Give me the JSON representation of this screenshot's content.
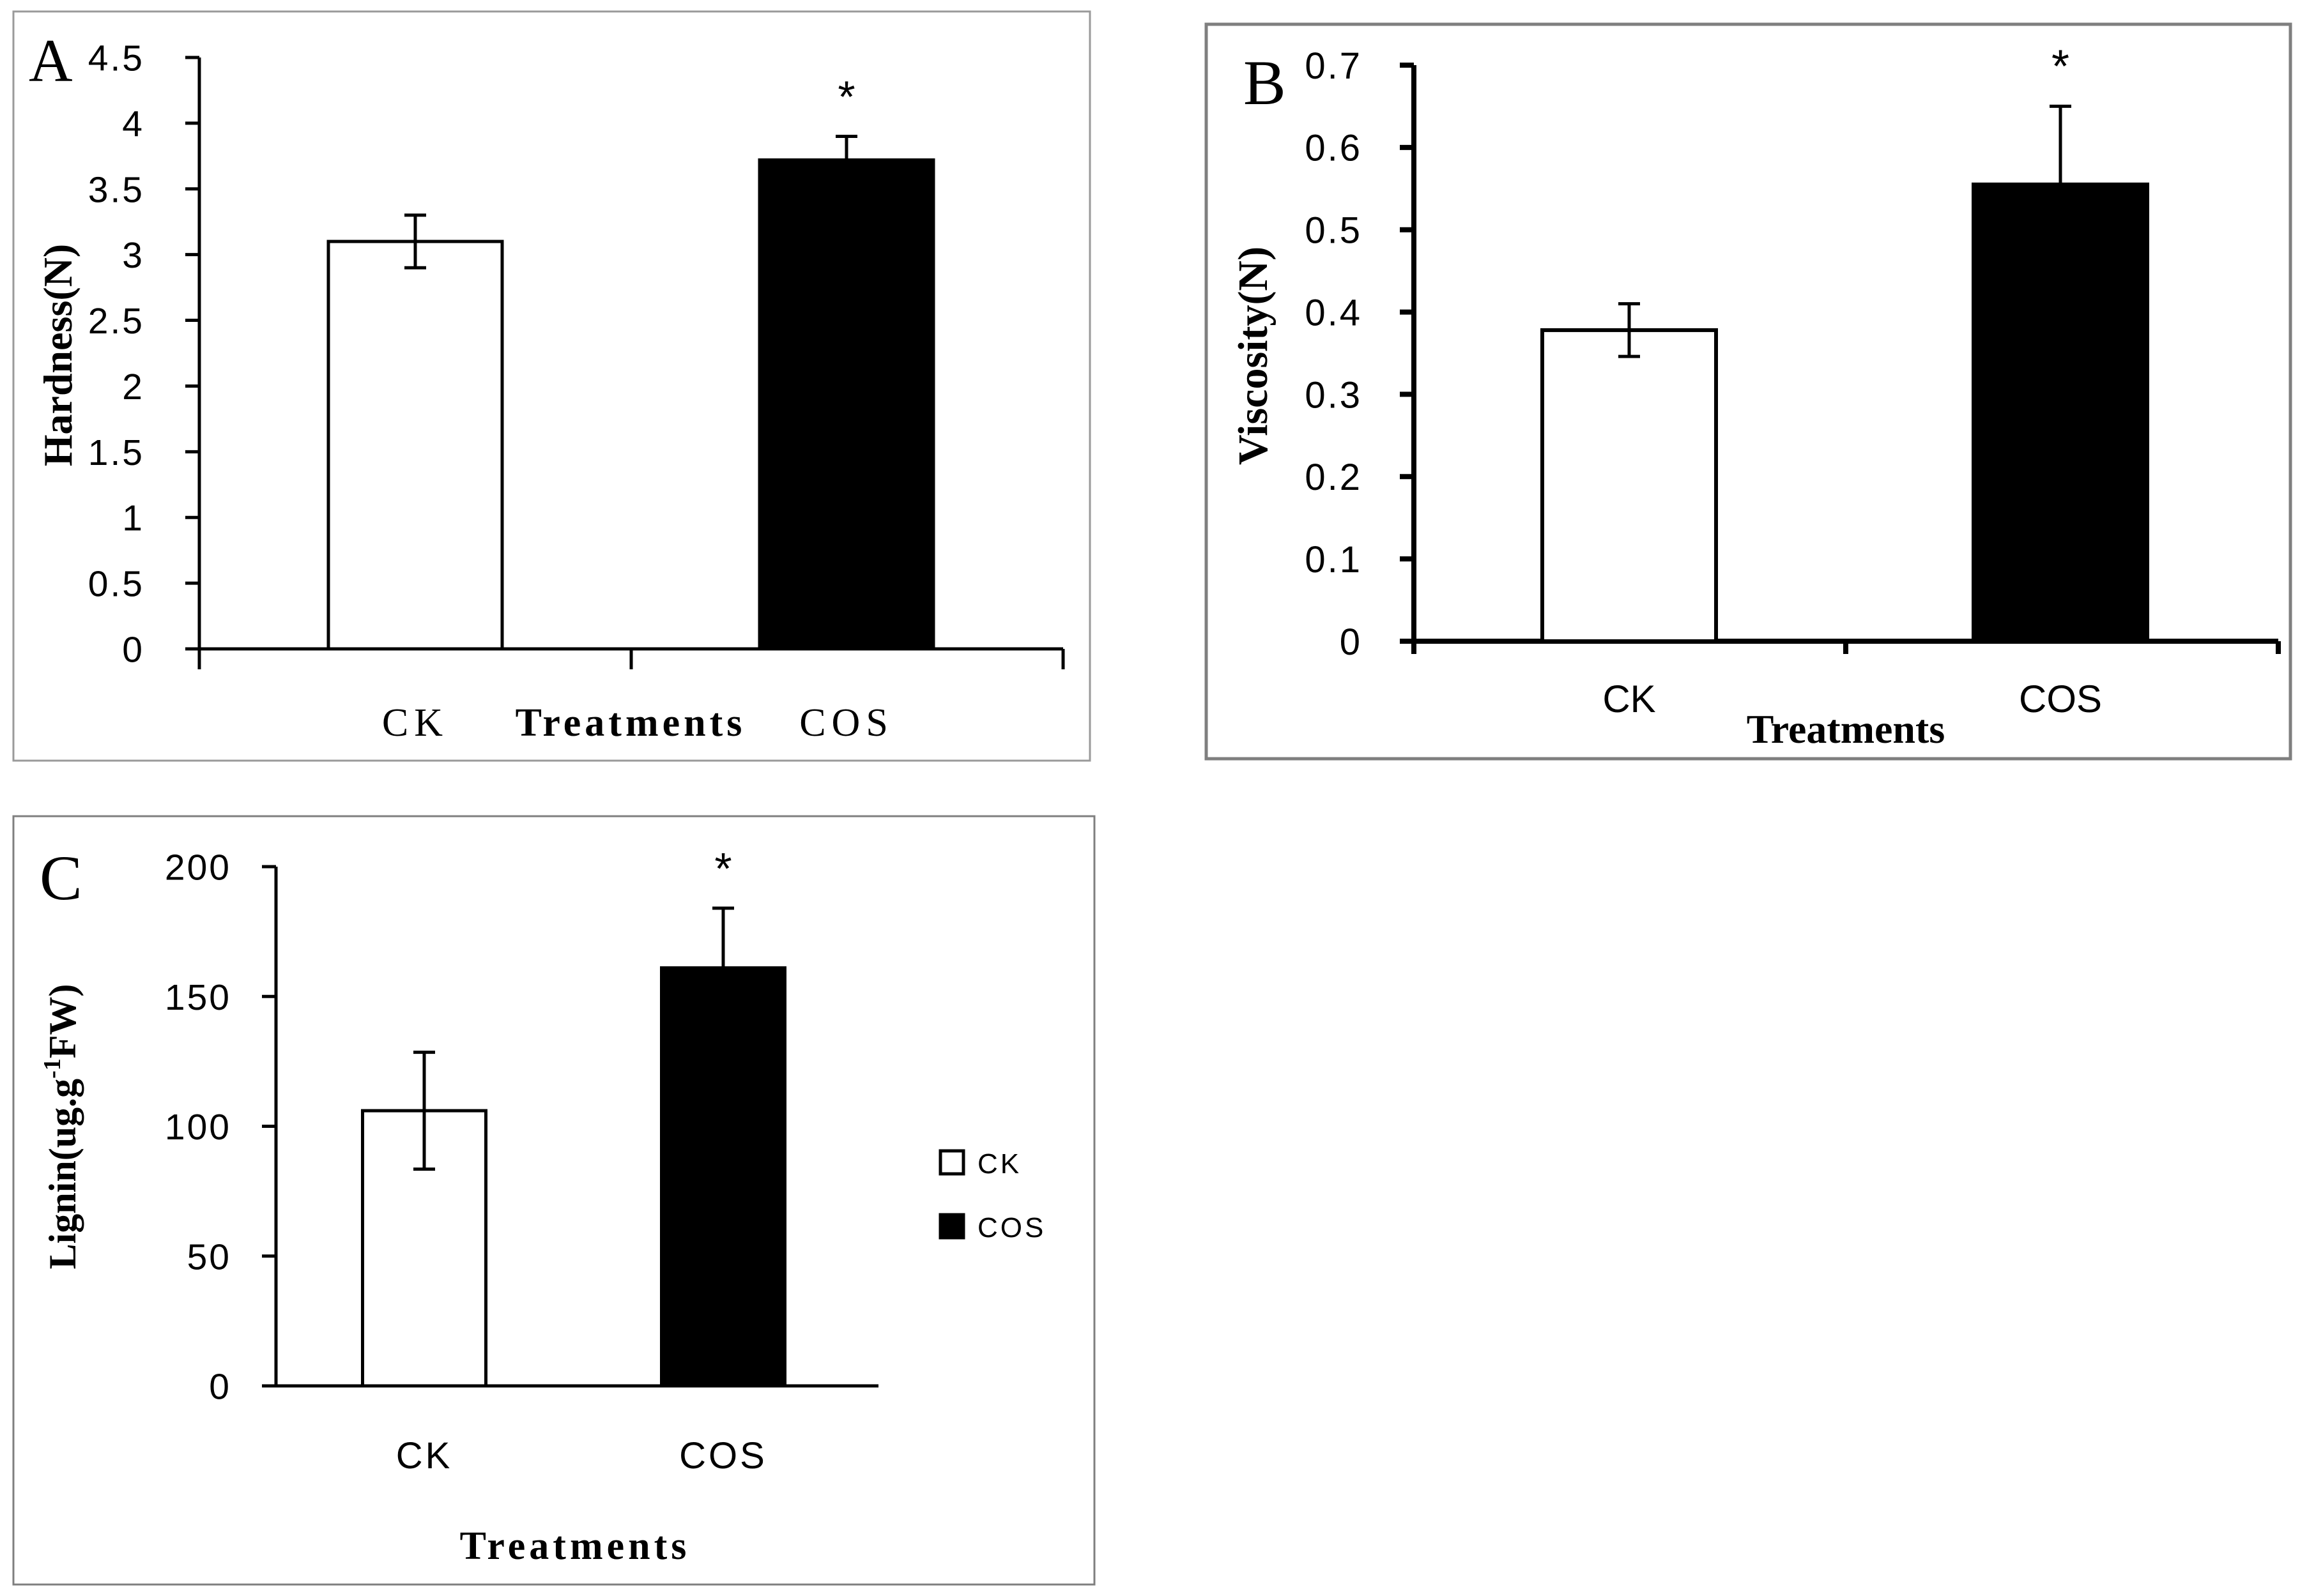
{
  "colors": {
    "ck_fill": "#ffffff",
    "cos_fill": "#000000",
    "stroke": "#000000"
  },
  "chart_data": [
    {
      "panel": "A",
      "type": "bar",
      "title": "",
      "categories": [
        "CK",
        "COS"
      ],
      "values": [
        3.1,
        3.72
      ],
      "errors": [
        0.2,
        0.18
      ],
      "significance": [
        "",
        "*"
      ],
      "ylim": [
        0,
        4.5
      ],
      "yticks": [
        0,
        0.5,
        1,
        1.5,
        2,
        2.5,
        3,
        3.5,
        4,
        4.5
      ],
      "ytick_labels": [
        "0",
        "0.5",
        "1",
        "1.5",
        "2",
        "2.5",
        "3",
        "3.5",
        "4",
        "4.5"
      ],
      "xlabel": "Treatments",
      "ylabel": "Hardness(N)",
      "legend": []
    },
    {
      "panel": "B",
      "type": "bar",
      "title": "",
      "categories": [
        "CK",
        "COS"
      ],
      "values": [
        0.378,
        0.555
      ],
      "errors": [
        0.032,
        0.095
      ],
      "significance": [
        "",
        "*"
      ],
      "ylim": [
        0,
        0.7
      ],
      "yticks": [
        0,
        0.1,
        0.2,
        0.3,
        0.4,
        0.5,
        0.6,
        0.7
      ],
      "ytick_labels": [
        "0",
        "0.1",
        "0.2",
        "0.3",
        "0.4",
        "0.5",
        "0.6",
        "0.7"
      ],
      "xlabel": "Treatments",
      "ylabel": "Viscosity(N)",
      "legend": []
    },
    {
      "panel": "C",
      "type": "bar",
      "title": "",
      "categories": [
        "CK",
        "COS"
      ],
      "values": [
        106,
        161
      ],
      "errors": [
        22.5,
        23
      ],
      "significance": [
        "",
        "*"
      ],
      "ylim": [
        0,
        200
      ],
      "yticks": [
        0,
        50,
        100,
        150,
        200
      ],
      "ytick_labels": [
        "0",
        "50",
        "100",
        "150",
        "200"
      ],
      "xlabel": "Treatments",
      "ylabel": "Lignin(ug.g",
      "ylabel_superscript": "-1",
      "ylabel_suffix": "FW)",
      "legend": [
        "CK",
        "COS"
      ]
    }
  ]
}
